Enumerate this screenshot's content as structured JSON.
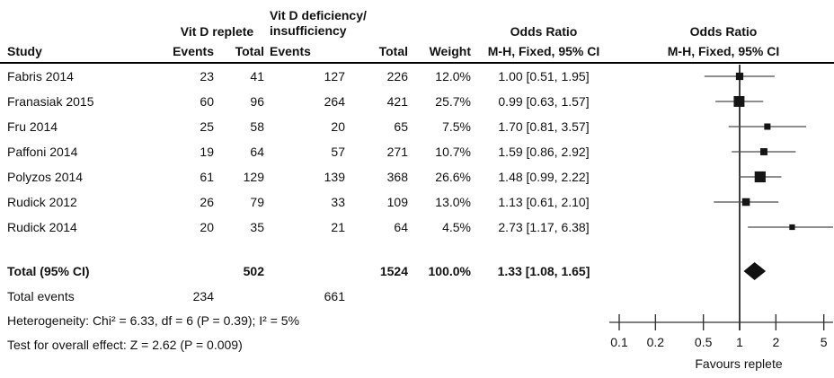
{
  "header": {
    "study": "Study",
    "group1": {
      "title": "Vit D replete",
      "events": "Events",
      "total": "Total"
    },
    "group2": {
      "title_line1": "Vit D deficiency/",
      "title_line2": "insufficiency",
      "events": "Events",
      "total": "Total"
    },
    "weight": "Weight",
    "or_col": {
      "title": "Odds Ratio",
      "subtitle": "M-H, Fixed, 95% CI"
    },
    "plot_col": {
      "title": "Odds Ratio",
      "subtitle": "M-H, Fixed, 95% CI"
    }
  },
  "chart_data": {
    "type": "forest",
    "effect_measure": "Odds Ratio",
    "method": "M-H, Fixed, 95% CI",
    "x_scale": "log",
    "x_ticks": [
      0.1,
      0.2,
      0.5,
      1,
      2,
      5
    ],
    "x_axis_label": "Favours replete",
    "studies": [
      {
        "study": "Fabris 2014",
        "events1": 23,
        "total1": 41,
        "events2": 127,
        "total2": 226,
        "weight": "12.0%",
        "weight_pct": 12.0,
        "or": 1.0,
        "ci_low": 0.51,
        "ci_high": 1.95,
        "or_text": "1.00 [0.51, 1.95]"
      },
      {
        "study": "Franasiak 2015",
        "events1": 60,
        "total1": 96,
        "events2": 264,
        "total2": 421,
        "weight": "25.7%",
        "weight_pct": 25.7,
        "or": 0.99,
        "ci_low": 0.63,
        "ci_high": 1.57,
        "or_text": "0.99 [0.63, 1.57]"
      },
      {
        "study": "Fru 2014",
        "events1": 25,
        "total1": 58,
        "events2": 20,
        "total2": 65,
        "weight": "7.5%",
        "weight_pct": 7.5,
        "or": 1.7,
        "ci_low": 0.81,
        "ci_high": 3.57,
        "or_text": "1.70 [0.81, 3.57]"
      },
      {
        "study": "Paffoni 2014",
        "events1": 19,
        "total1": 64,
        "events2": 57,
        "total2": 271,
        "weight": "10.7%",
        "weight_pct": 10.7,
        "or": 1.59,
        "ci_low": 0.86,
        "ci_high": 2.92,
        "or_text": "1.59 [0.86, 2.92]"
      },
      {
        "study": "Polyzos 2014",
        "events1": 61,
        "total1": 129,
        "events2": 139,
        "total2": 368,
        "weight": "26.6%",
        "weight_pct": 26.6,
        "or": 1.48,
        "ci_low": 0.99,
        "ci_high": 2.22,
        "or_text": "1.48 [0.99, 2.22]"
      },
      {
        "study": "Rudick 2012",
        "events1": 26,
        "total1": 79,
        "events2": 33,
        "total2": 109,
        "weight": "13.0%",
        "weight_pct": 13.0,
        "or": 1.13,
        "ci_low": 0.61,
        "ci_high": 2.1,
        "or_text": "1.13 [0.61, 2.10]"
      },
      {
        "study": "Rudick 2014",
        "events1": 20,
        "total1": 35,
        "events2": 21,
        "total2": 64,
        "weight": "4.5%",
        "weight_pct": 4.5,
        "or": 2.73,
        "ci_low": 1.17,
        "ci_high": 6.38,
        "or_text": "2.73 [1.17, 6.38]"
      }
    ],
    "total": {
      "label": "Total (95% CI)",
      "total1": 502,
      "total2": 1524,
      "weight": "100.0%",
      "or": 1.33,
      "ci_low": 1.08,
      "ci_high": 1.65,
      "or_text": "1.33 [1.08, 1.65]"
    },
    "total_events": {
      "label": "Total events",
      "events1": 234,
      "events2": 661
    }
  },
  "footnotes": {
    "heterogeneity": "Heterogeneity: Chi² = 6.33, df = 6 (P = 0.39); I² = 5%",
    "overall_effect": "Test for overall effect: Z = 2.62 (P = 0.009)"
  }
}
